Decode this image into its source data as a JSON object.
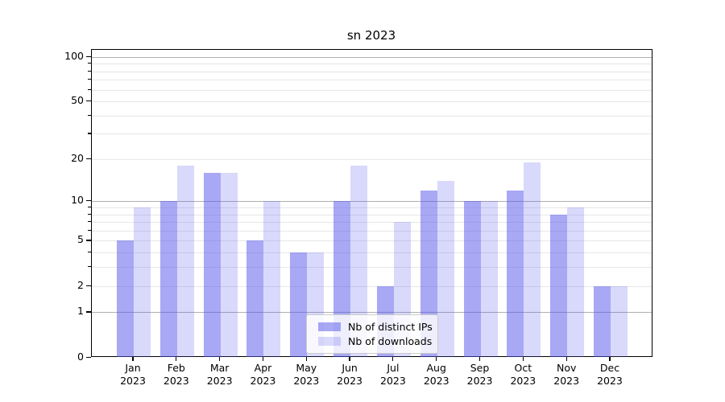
{
  "title": "sn 2023",
  "colors": {
    "ips_bar": "rgba(82,82,235,0.5)",
    "downloads_bar": "rgba(82,82,235,0.22)",
    "major_grid": "#b0b0b0",
    "minor_grid": "#e7e7e7",
    "axis": "#000000",
    "legend_border": "#cccccc",
    "legend_bg": "rgba(255,255,255,0.8)",
    "plot_bg": "#ffffff"
  },
  "chart_data": {
    "type": "bar",
    "title": "sn 2023",
    "x": [
      "Jan",
      "Feb",
      "Mar",
      "Apr",
      "May",
      "Jun",
      "Jul",
      "Aug",
      "Sep",
      "Oct",
      "Nov",
      "Dec"
    ],
    "x_year": "2023",
    "series": [
      {
        "name": "Nb of distinct IPs",
        "color": "rgba(82,82,235,0.5)",
        "values": [
          5,
          10,
          16,
          5,
          4,
          10,
          2,
          12,
          10,
          12,
          8,
          2
        ]
      },
      {
        "name": "Nb of downloads",
        "color": "rgba(82,82,235,0.22)",
        "values": [
          9,
          18,
          16,
          10,
          4,
          18,
          7,
          14,
          10,
          19,
          9,
          2
        ]
      }
    ],
    "y_axis": {
      "scale": "symlog (y ∝ log(1+v))",
      "ticks": [
        0,
        1,
        2,
        5,
        10,
        20,
        50,
        100
      ],
      "major_grid_at": [
        1,
        10,
        100
      ],
      "minor_ticks": [
        3,
        4,
        6,
        7,
        8,
        9,
        30,
        40,
        60,
        70,
        80,
        90
      ],
      "ylim": [
        0,
        112
      ]
    },
    "grid": true,
    "legend_position": "lower-center"
  }
}
